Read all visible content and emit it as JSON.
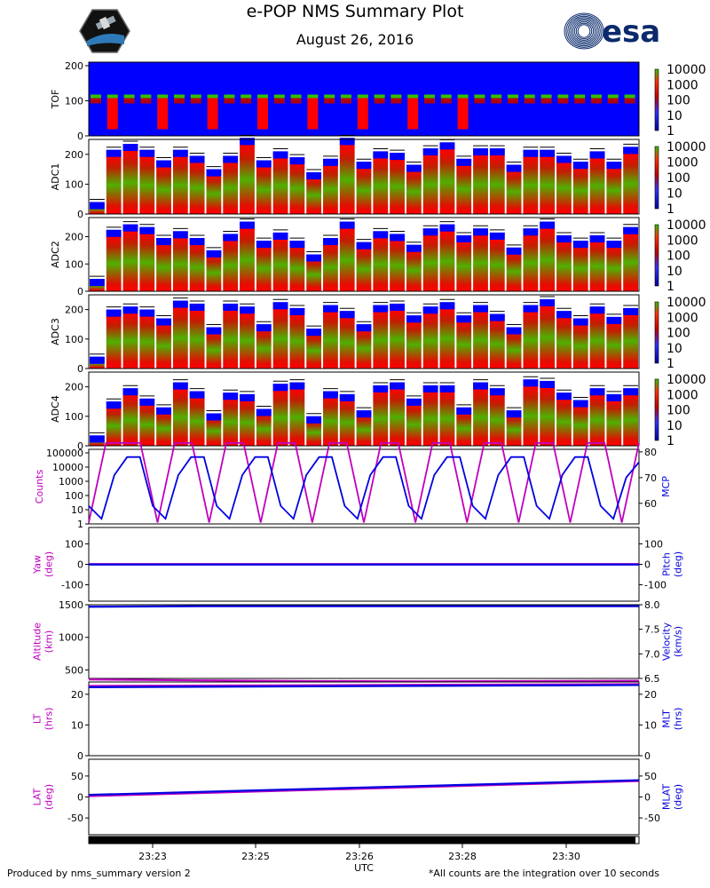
{
  "header": {
    "title": "e-POP NMS Summary Plot",
    "date": "August 26, 2016",
    "right_logo_text": "esa"
  },
  "footer": {
    "left": "Produced by nms_summary version 2",
    "right": "*All counts are the integration over 10 seconds"
  },
  "colors": {
    "magenta": "#c000c0",
    "blue": "#0000e0",
    "spectro_bg": "#0000ff",
    "esa_navy": "#0a2a6b"
  },
  "chart_data": [
    {
      "type": "heatmap",
      "ylabel": "TOF",
      "ylim": [
        0,
        210
      ],
      "yticks": [
        0,
        100,
        200
      ],
      "colorbar": {
        "ticks": [
          "10000",
          "1000",
          "100",
          "10",
          "1"
        ],
        "scale": "log"
      },
      "note": "blue background with red/green bands near 100"
    },
    {
      "type": "heatmap",
      "ylabel": "ADC1",
      "ylim": [
        0,
        250
      ],
      "yticks": [
        0,
        100,
        200
      ],
      "colorbar": {
        "ticks": [
          "10000",
          "1000",
          "100",
          "10",
          "1"
        ],
        "scale": "log"
      },
      "column_tops": [
        40,
        215,
        235,
        215,
        180,
        215,
        195,
        150,
        195,
        255,
        180,
        210,
        190,
        140,
        185,
        255,
        175,
        210,
        205,
        165,
        220,
        240,
        185,
        220,
        220,
        165,
        215,
        215,
        195,
        175,
        210,
        175,
        225
      ]
    },
    {
      "type": "heatmap",
      "ylabel": "ADC2",
      "ylim": [
        0,
        270
      ],
      "yticks": [
        0,
        100,
        200
      ],
      "colorbar": {
        "ticks": [
          "10000",
          "1000",
          "100",
          "10",
          "1"
        ],
        "scale": "log"
      },
      "column_tops": [
        45,
        225,
        245,
        235,
        195,
        220,
        195,
        150,
        210,
        255,
        185,
        215,
        185,
        135,
        195,
        255,
        180,
        220,
        210,
        170,
        230,
        245,
        205,
        230,
        215,
        160,
        230,
        255,
        205,
        185,
        205,
        185,
        235
      ]
    },
    {
      "type": "heatmap",
      "ylabel": "ADC3",
      "ylim": [
        0,
        250
      ],
      "yticks": [
        0,
        100,
        200
      ],
      "colorbar": {
        "ticks": [
          "10000",
          "1000",
          "100",
          "10",
          "1"
        ],
        "scale": "log"
      },
      "column_tops": [
        40,
        200,
        210,
        200,
        170,
        230,
        220,
        140,
        220,
        210,
        150,
        225,
        205,
        135,
        215,
        195,
        150,
        215,
        220,
        180,
        210,
        225,
        180,
        215,
        185,
        140,
        215,
        235,
        195,
        170,
        210,
        175,
        205
      ]
    },
    {
      "type": "heatmap",
      "ylabel": "ADC4",
      "ylim": [
        0,
        250
      ],
      "yticks": [
        0,
        100,
        200
      ],
      "colorbar": {
        "ticks": [
          "10000",
          "1000",
          "100",
          "10",
          "1"
        ],
        "scale": "log"
      },
      "column_tops": [
        35,
        150,
        195,
        160,
        130,
        215,
        185,
        110,
        180,
        175,
        125,
        210,
        215,
        100,
        185,
        175,
        120,
        205,
        215,
        160,
        205,
        205,
        130,
        215,
        195,
        120,
        225,
        220,
        180,
        155,
        195,
        175,
        195
      ]
    },
    {
      "type": "line",
      "ylabel_left": "Counts",
      "ylabel_right": "MCP",
      "left_ticks": [
        "100000",
        "10000",
        "1000",
        "100",
        "10",
        "1"
      ],
      "right_ticks": [
        60,
        70,
        80
      ],
      "right_ylim": [
        52,
        81
      ],
      "series": [
        {
          "axis": "left",
          "color": "magenta",
          "style": "square-wave",
          "values_log10": [
            0.1,
            5.7,
            5.7,
            5.7,
            0.1,
            5.7,
            5.7,
            0.1,
            5.7,
            5.7,
            0.1,
            5.7,
            5.7,
            0.1,
            5.7,
            5.7,
            0.1,
            5.7,
            5.7,
            0.1,
            5.7,
            5.7,
            0.1,
            5.7,
            5.7,
            0.1,
            5.7,
            5.7,
            0.1,
            5.7,
            5.7,
            0.1,
            5.7
          ]
        },
        {
          "axis": "right",
          "color": "blue",
          "values": [
            59,
            54,
            71,
            78,
            78,
            59,
            54,
            71,
            78,
            78,
            59,
            54,
            71,
            78,
            78,
            59,
            54,
            71,
            78,
            78,
            59,
            54,
            71,
            78,
            78,
            59,
            54,
            71,
            78,
            78,
            59,
            54,
            71,
            78,
            78,
            59,
            54,
            71,
            78,
            78,
            59,
            54,
            70,
            76
          ]
        }
      ]
    },
    {
      "type": "line",
      "ylabel_left": "Yaw\n(deg)",
      "ylabel_right": "Pitch\n(deg)",
      "left_ticks": [
        -100,
        0,
        100
      ],
      "right_ticks": [
        -100,
        0,
        100
      ],
      "ylim": [
        -180,
        180
      ],
      "series": [
        {
          "axis": "left",
          "color": "magenta",
          "values": [
            1,
            1
          ]
        },
        {
          "axis": "right",
          "color": "blue",
          "values": [
            -1,
            -1
          ]
        }
      ]
    },
    {
      "type": "line",
      "ylabel_left": "Altitude\n(km)",
      "ylabel_right": "Velocity\n(km/s)",
      "left_ticks": [
        500,
        1000,
        1500
      ],
      "left_ylim": [
        370,
        1500
      ],
      "right_ticks": [
        "6.5",
        "7.0",
        "7.5",
        "8.0"
      ],
      "right_ylim": [
        6.5,
        8.0
      ],
      "series": [
        {
          "axis": "left",
          "color": "magenta",
          "values": [
            355,
            340,
            330,
            325,
            330,
            335
          ]
        },
        {
          "axis": "right",
          "color": "blue",
          "values": [
            7.96,
            7.97,
            7.97,
            7.97,
            7.97,
            7.97
          ]
        }
      ]
    },
    {
      "type": "line",
      "ylabel_left": "LT\n(hrs)",
      "ylabel_right": "MLT\n(hrs)",
      "left_ticks": [
        0,
        10,
        20
      ],
      "right_ticks": [
        0,
        10,
        20
      ],
      "ylim": [
        0,
        24
      ],
      "series": [
        {
          "axis": "left",
          "color": "magenta",
          "values": [
            22.7,
            23.3
          ]
        },
        {
          "axis": "right",
          "color": "blue",
          "values": [
            22.3,
            23.0
          ]
        }
      ]
    },
    {
      "type": "line",
      "ylabel_left": "LAT\n(deg)",
      "ylabel_right": "MLAT\n(deg)",
      "left_ticks": [
        -50,
        0,
        50
      ],
      "right_ticks": [
        -50,
        0,
        50
      ],
      "ylim": [
        -90,
        90
      ],
      "series": [
        {
          "axis": "left",
          "color": "magenta",
          "values": [
            2,
            38
          ]
        },
        {
          "axis": "right",
          "color": "blue",
          "values": [
            5,
            40
          ]
        }
      ]
    }
  ],
  "x_axis": {
    "label": "UTC",
    "ticks": [
      "23:23",
      "23:25",
      "23:26",
      "23:28",
      "23:30"
    ]
  }
}
